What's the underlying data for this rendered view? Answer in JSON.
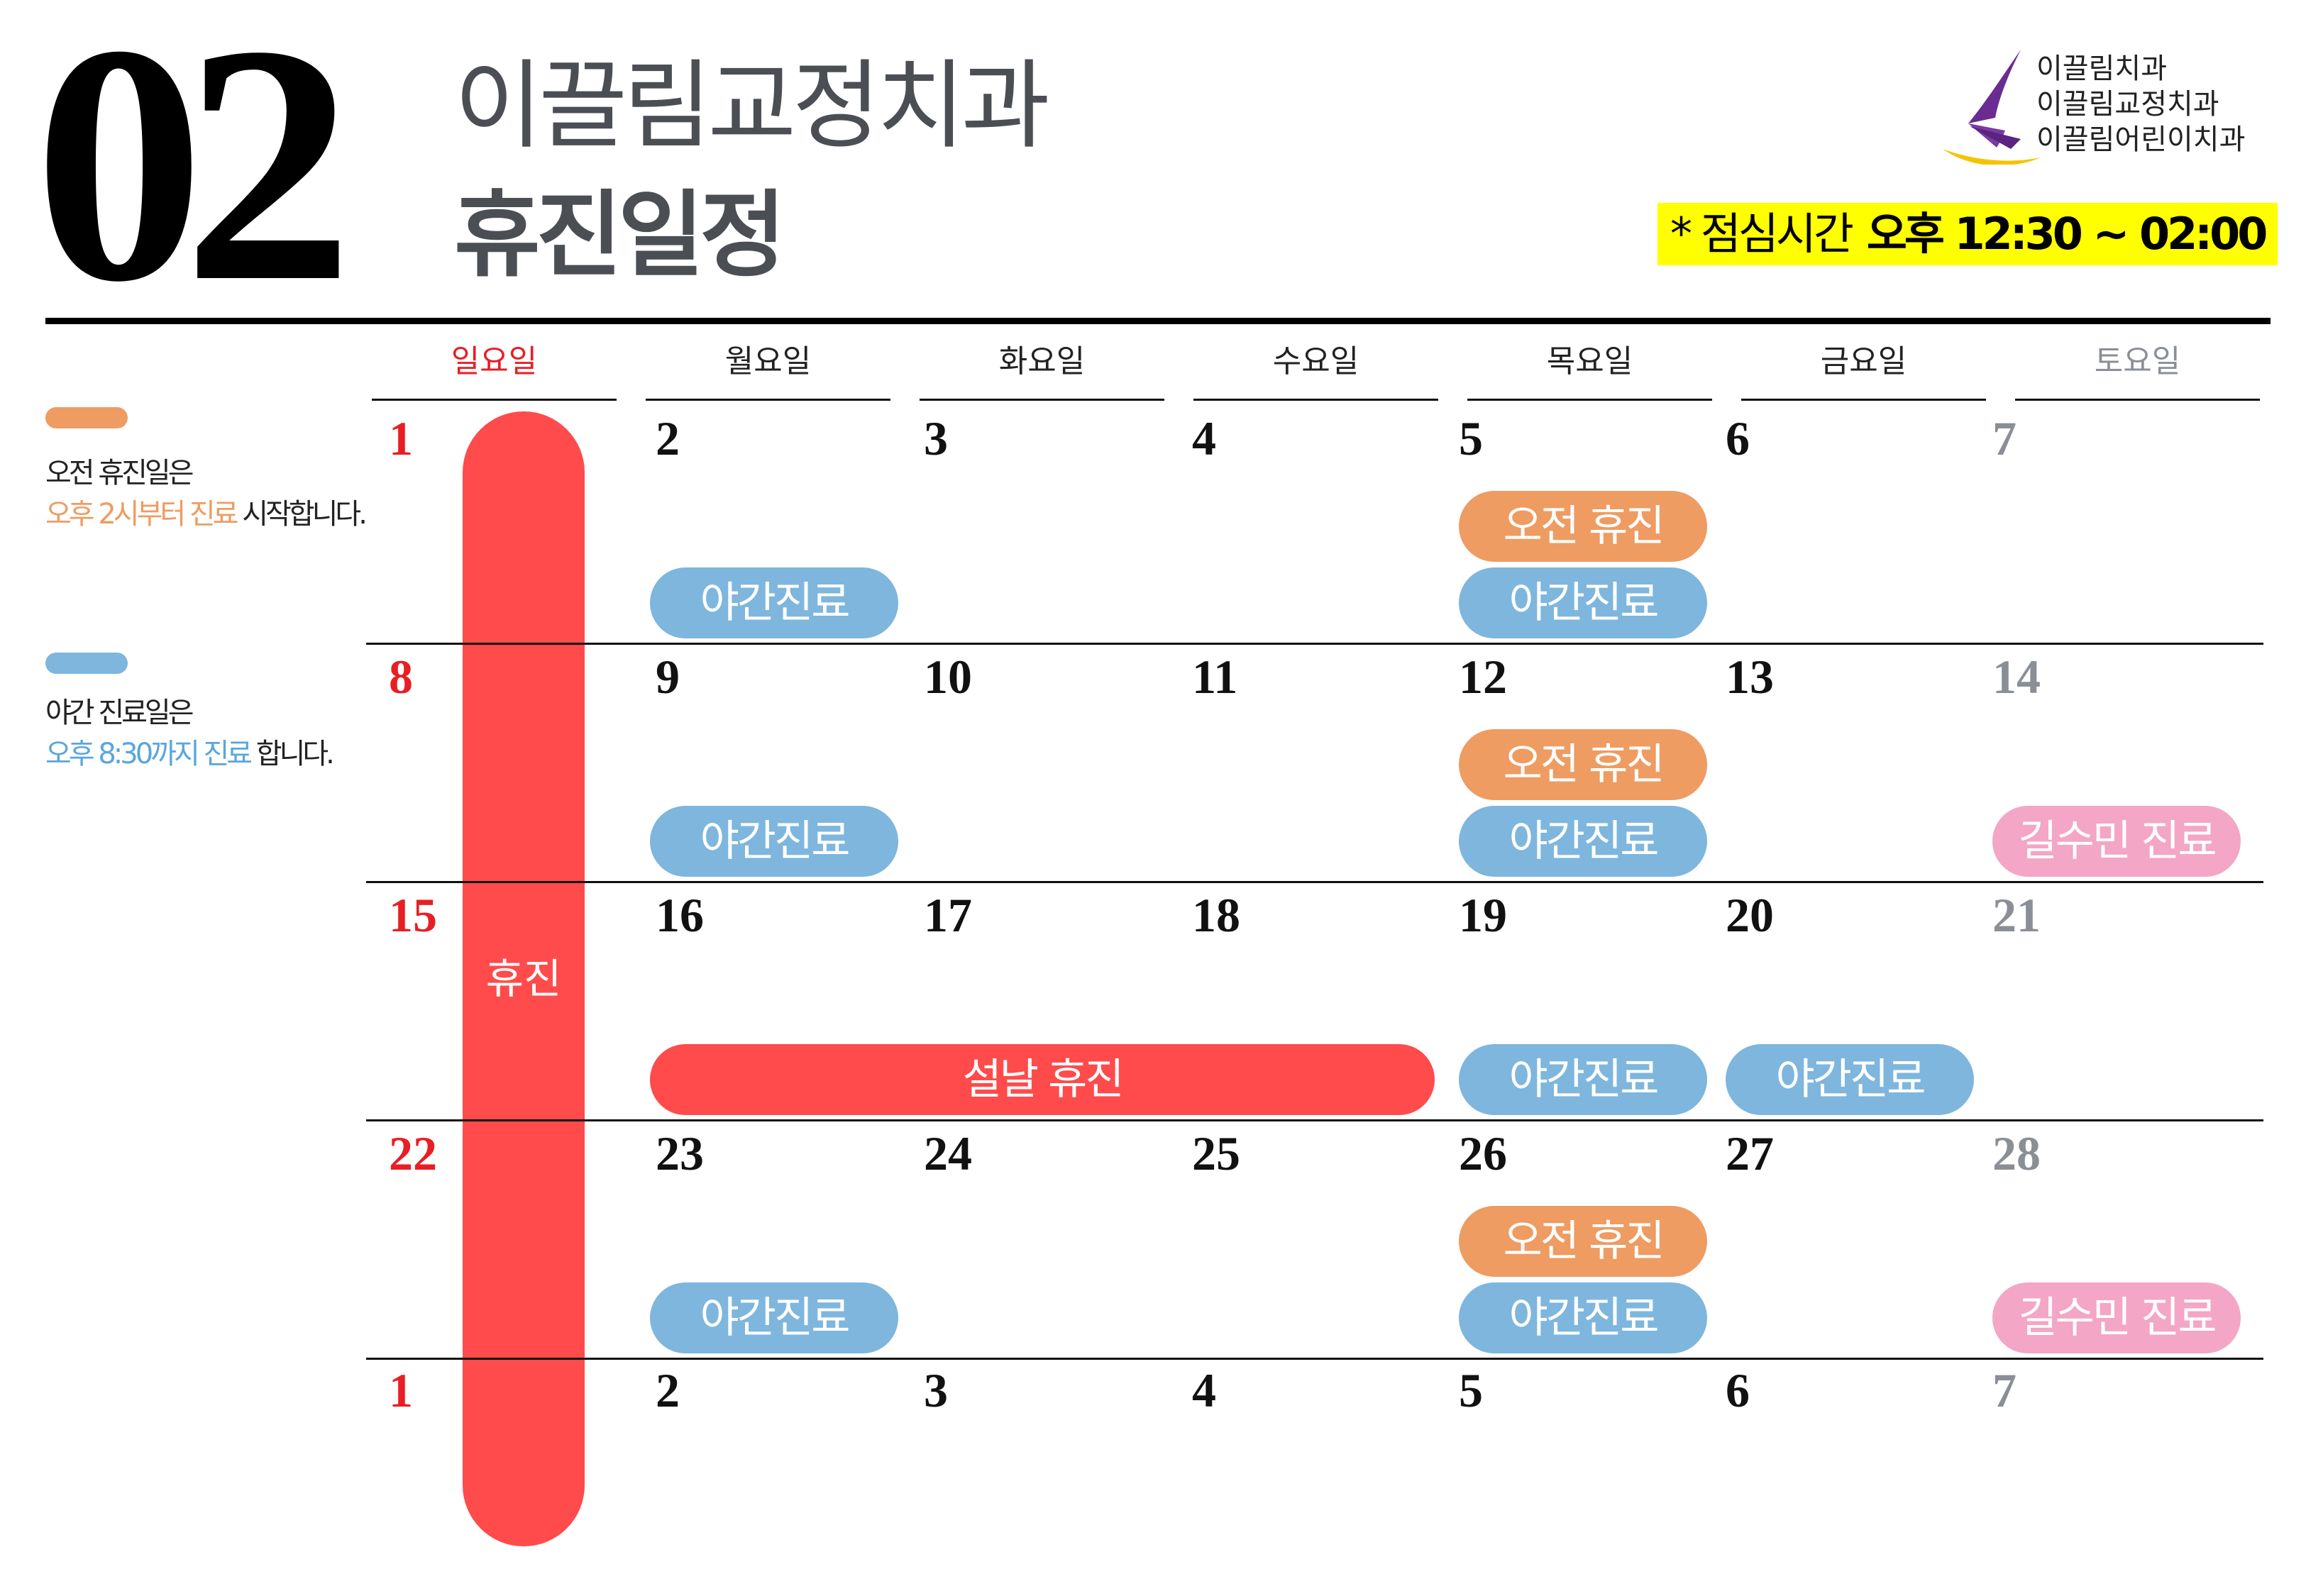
{
  "header": {
    "month": "02",
    "clinic_name": "이끌림교정치과",
    "schedule_title": "휴진일정",
    "lunch_prefix": "* 점심시간",
    "lunch_time": "오후 12:30 ~ 02:00"
  },
  "brands": [
    "이끌림치과",
    "이끌림교정치과",
    "이끌림어린이치과"
  ],
  "logo": {
    "icon": "sail-logo-icon",
    "colors": [
      "#6a2c91",
      "#f5c400"
    ]
  },
  "legend": [
    {
      "color": "#ee9c62",
      "line1": "오전 휴진일은",
      "highlight": "오후 2시부터 진료",
      "rest": " 시작합니다."
    },
    {
      "color": "#7eb6dd",
      "line1": "야간 진료일은",
      "highlight": "오후 8:30까지 진료",
      "rest": " 합니다."
    }
  ],
  "weekdays": [
    "일요일",
    "월요일",
    "화요일",
    "수요일",
    "목요일",
    "금요일",
    "토요일"
  ],
  "weeks": [
    [
      "1",
      "2",
      "3",
      "4",
      "5",
      "6",
      "7"
    ],
    [
      "8",
      "9",
      "10",
      "11",
      "12",
      "13",
      "14"
    ],
    [
      "15",
      "16",
      "17",
      "18",
      "19",
      "20",
      "21"
    ],
    [
      "22",
      "23",
      "24",
      "25",
      "26",
      "27",
      "28"
    ],
    [
      "1",
      "2",
      "3",
      "4",
      "5",
      "6",
      "7"
    ]
  ],
  "sunday_closed_label": "휴진",
  "events": [
    {
      "week": 0,
      "day_start": 1,
      "day_end": 1,
      "row": "lower",
      "type": "blue",
      "label": "야간진료"
    },
    {
      "week": 0,
      "day_start": 4,
      "day_end": 4,
      "row": "upper",
      "type": "orange",
      "label": "오전 휴진"
    },
    {
      "week": 0,
      "day_start": 4,
      "day_end": 4,
      "row": "lower",
      "type": "blue",
      "label": "야간진료"
    },
    {
      "week": 1,
      "day_start": 1,
      "day_end": 1,
      "row": "lower",
      "type": "blue",
      "label": "야간진료"
    },
    {
      "week": 1,
      "day_start": 4,
      "day_end": 4,
      "row": "upper",
      "type": "orange",
      "label": "오전 휴진"
    },
    {
      "week": 1,
      "day_start": 4,
      "day_end": 4,
      "row": "lower",
      "type": "blue",
      "label": "야간진료"
    },
    {
      "week": 1,
      "day_start": 6,
      "day_end": 6,
      "row": "lower",
      "type": "pink",
      "label": "길수민 진료"
    },
    {
      "week": 2,
      "day_start": 1,
      "day_end": 3,
      "row": "lower",
      "type": "red",
      "label": "설날 휴진"
    },
    {
      "week": 2,
      "day_start": 4,
      "day_end": 4,
      "row": "lower",
      "type": "blue",
      "label": "야간진료"
    },
    {
      "week": 2,
      "day_start": 5,
      "day_end": 5,
      "row": "lower",
      "type": "blue",
      "label": "야간진료"
    },
    {
      "week": 3,
      "day_start": 1,
      "day_end": 1,
      "row": "lower",
      "type": "blue",
      "label": "야간진료"
    },
    {
      "week": 3,
      "day_start": 4,
      "day_end": 4,
      "row": "upper",
      "type": "orange",
      "label": "오전 휴진"
    },
    {
      "week": 3,
      "day_start": 4,
      "day_end": 4,
      "row": "lower",
      "type": "blue",
      "label": "야간진료"
    },
    {
      "week": 3,
      "day_start": 6,
      "day_end": 6,
      "row": "lower",
      "type": "pink",
      "label": "길수민 진료"
    }
  ]
}
